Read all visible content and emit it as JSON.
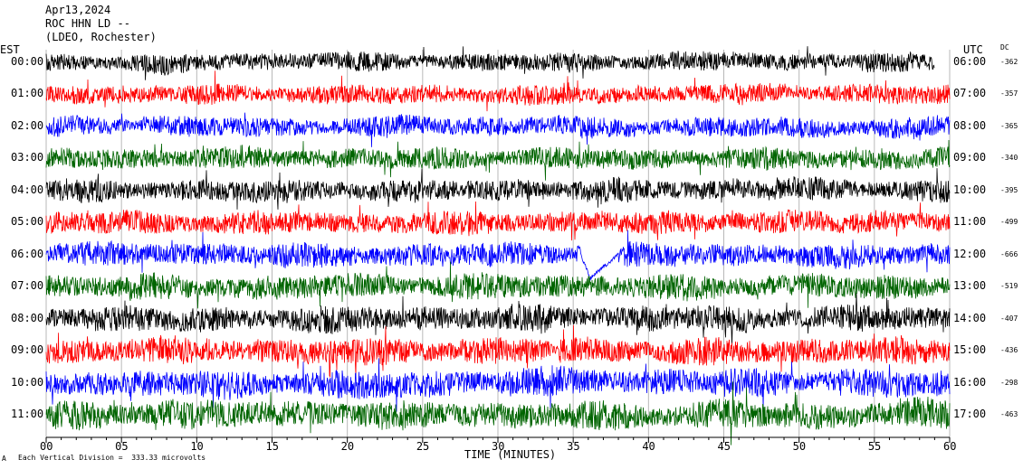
{
  "header": {
    "date": "Apr13,2024",
    "station": "ROC HHN LD --",
    "network": "(LDEO, Rochester)"
  },
  "chart_data": {
    "type": "line",
    "title": "Apr13,2024",
    "xlabel": "TIME (MINUTES)",
    "ylabel": "",
    "left_axis_title": "EST",
    "right_axis_title": "UTC",
    "dc_header": "DC",
    "xlim": [
      0,
      60
    ],
    "x_ticks": [
      "00",
      "05",
      "10",
      "15",
      "20",
      "25",
      "30",
      "35",
      "40",
      "45",
      "50",
      "55",
      "60"
    ],
    "left_hours": [
      "00:00",
      "01:00",
      "02:00",
      "03:00",
      "04:00",
      "05:00",
      "06:00",
      "07:00",
      "08:00",
      "09:00",
      "10:00",
      "11:00"
    ],
    "right_hours": [
      "06:00",
      "07:00",
      "08:00",
      "09:00",
      "10:00",
      "11:00",
      "12:00",
      "13:00",
      "14:00",
      "15:00",
      "16:00",
      "17:00"
    ],
    "dc_offsets": [
      "-362",
      "-357",
      "-365",
      "-340",
      "-395",
      "-499",
      "-666",
      "-519",
      "-407",
      "-436",
      "-298",
      "-463"
    ],
    "trace_colors": [
      "#000000",
      "#ff0000",
      "#0000ff",
      "#006400"
    ],
    "grid_vertical": true,
    "first_trace_end_minute": 59,
    "event": {
      "row": 6,
      "start_minute": 35.5,
      "end_minute": 38
    }
  },
  "footer": {
    "scale_note": "Each Vertical Division =  333.33 microvolts",
    "corner_mark": "A"
  }
}
